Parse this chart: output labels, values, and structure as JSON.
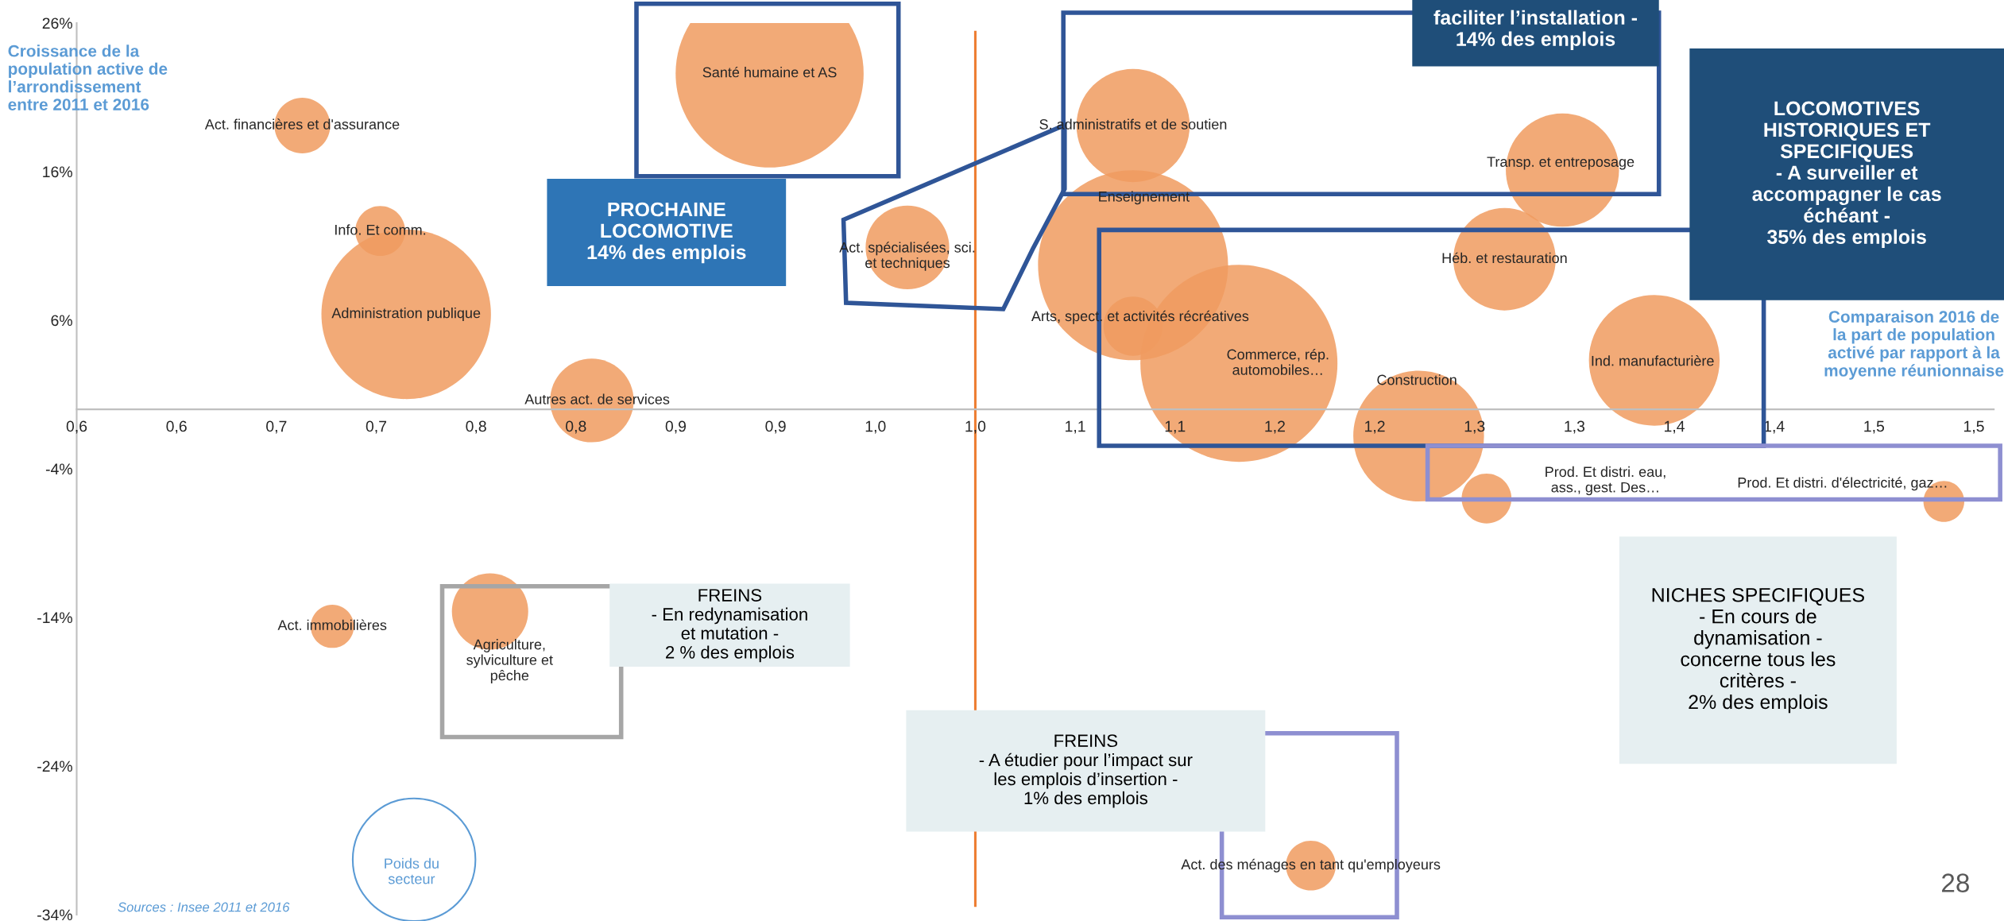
{
  "chart_data": {
    "type": "bubble",
    "ylabel": "Croissance de la\npopulation active de\nl’arrondissement\nentre 2011 et 2016",
    "xlabel": "Comparaison 2016 de\nla part de population\nactivé par rapport à la\nmoyenne réunionnaise",
    "xlim": [
      0.55,
      1.51
    ],
    "xticks": [
      {
        "value": 0.55,
        "label": "0,6"
      },
      {
        "value": 0.6,
        "label": "0,6"
      },
      {
        "value": 0.65,
        "label": "0,7"
      },
      {
        "value": 0.7,
        "label": "0,7"
      },
      {
        "value": 0.75,
        "label": "0,8"
      },
      {
        "value": 0.8,
        "label": "0,8"
      },
      {
        "value": 0.85,
        "label": "0,9"
      },
      {
        "value": 0.9,
        "label": "0,9"
      },
      {
        "value": 0.95,
        "label": "1,0"
      },
      {
        "value": 1.0,
        "label": "1,0"
      },
      {
        "value": 1.05,
        "label": "1,1"
      },
      {
        "value": 1.1,
        "label": "1,1"
      },
      {
        "value": 1.15,
        "label": "1,2"
      },
      {
        "value": 1.2,
        "label": "1,2"
      },
      {
        "value": 1.25,
        "label": "1,3"
      },
      {
        "value": 1.3,
        "label": "1,3"
      },
      {
        "value": 1.35,
        "label": "1,4"
      },
      {
        "value": 1.4,
        "label": "1,4"
      },
      {
        "value": 1.45,
        "label": "1,5"
      },
      {
        "value": 1.5,
        "label": "1,5"
      }
    ],
    "ylim": [
      -34,
      26
    ],
    "yticks": [
      {
        "value": 26,
        "label": "26%"
      },
      {
        "value": 16,
        "label": "16%"
      },
      {
        "value": 6,
        "label": "6%"
      },
      {
        "value": -4,
        "label": "-4%"
      },
      {
        "value": -14,
        "label": "-14%"
      },
      {
        "value": -24,
        "label": "-24%"
      },
      {
        "value": -34,
        "label": "-34%"
      }
    ],
    "grid": false,
    "legend": false,
    "ref_lines": [
      {
        "axis": "x",
        "value": 1.0,
        "color": "#ed7d31"
      }
    ],
    "series": [
      {
        "name": "Act. financières et d'assurance",
        "color": "#f09b5f",
        "x": [
          0.663
        ],
        "values": [
          19.1
        ],
        "sizes": [
          0.08
        ]
      },
      {
        "name": "Santé humaine et AS",
        "color": "#f09b5f",
        "x": [
          0.897
        ],
        "values": [
          22.6
        ],
        "sizes": [
          0.91
        ]
      },
      {
        "name": "Info. Et comm.",
        "color": "#f09b5f",
        "x": [
          0.702
        ],
        "values": [
          12.0
        ],
        "sizes": [
          0.064
        ]
      },
      {
        "name": "Administration publique",
        "color": "#f09b5f",
        "x": [
          0.715
        ],
        "values": [
          6.4
        ],
        "sizes": [
          0.74
        ]
      },
      {
        "name": "Autres act. de services",
        "color": "#f09b5f",
        "x": [
          0.808
        ],
        "values": [
          0.6
        ],
        "sizes": [
          0.18
        ]
      },
      {
        "name": "Act. spécialisées, sci.\net techniques",
        "color": "#f09b5f",
        "x": [
          0.966
        ],
        "values": [
          10.9
        ],
        "sizes": [
          0.18
        ]
      },
      {
        "name": "S. administratifs et de soutien",
        "color": "#f09b5f",
        "x": [
          1.079
        ],
        "values": [
          19.1
        ],
        "sizes": [
          0.33
        ]
      },
      {
        "name": "Enseignement",
        "color": "#f09b5f",
        "x": [
          1.079
        ],
        "values": [
          9.7
        ],
        "sizes": [
          0.93
        ]
      },
      {
        "name": "Arts, spect. et activités récréatives",
        "color": "#f09b5f",
        "x": [
          1.079
        ],
        "values": [
          5.6
        ],
        "sizes": [
          0.09
        ]
      },
      {
        "name": "Commerce, rép.\nautomobiles…",
        "color": "#f09b5f",
        "x": [
          1.132
        ],
        "values": [
          3.1
        ],
        "sizes": [
          1.0
        ]
      },
      {
        "name": "Transp. et entreposage",
        "color": "#f09b5f",
        "x": [
          1.294
        ],
        "values": [
          16.1
        ],
        "sizes": [
          0.33
        ]
      },
      {
        "name": "Héb. et restauration",
        "color": "#f09b5f",
        "x": [
          1.265
        ],
        "values": [
          10.1
        ],
        "sizes": [
          0.27
        ]
      },
      {
        "name": "Construction",
        "color": "#f09b5f",
        "x": [
          1.222
        ],
        "values": [
          -1.8
        ],
        "sizes": [
          0.44
        ]
      },
      {
        "name": "Ind. manufacturière",
        "color": "#f09b5f",
        "x": [
          1.34
        ],
        "values": [
          3.3
        ],
        "sizes": [
          0.44
        ]
      },
      {
        "name": "Prod. Et distri. eau,\nass., gest. Des…",
        "color": "#f09b5f",
        "x": [
          1.256
        ],
        "values": [
          -6.0
        ],
        "sizes": [
          0.064
        ]
      },
      {
        "name": "Prod. Et distri. d'électricité, gaz…",
        "color": "#f09b5f",
        "x": [
          1.485
        ],
        "values": [
          -6.2
        ],
        "sizes": [
          0.043
        ]
      },
      {
        "name": "Act. immobilières",
        "color": "#f09b5f",
        "x": [
          0.678
        ],
        "values": [
          -14.6
        ],
        "sizes": [
          0.048
        ]
      },
      {
        "name": "Agriculture,\nsylviculture et\npêche",
        "color": "#f09b5f",
        "x": [
          0.757
        ],
        "values": [
          -13.6
        ],
        "sizes": [
          0.15
        ]
      },
      {
        "name": "Act. des ménages en tant qu'employeurs",
        "color": "#f09b5f",
        "x": [
          1.168
        ],
        "values": [
          -30.7
        ],
        "sizes": [
          0.064
        ]
      }
    ],
    "annotations": [
      "faciliter l’installation -\n14% des emplois",
      "PROCHAINE\nLOCOMOTIVE\n14% des emplois",
      "LOCOMOTIVES\nHISTORIQUES ET\nSPECIFIQUES\n- A surveiller et\naccompagner le cas\néchéant -\n35% des emplois",
      "FREINS\n- En redynamisation\net mutation -\n2 % des emplois",
      "FREINS\n- A étudier pour l’impact sur\nles emplois d’insertion -\n1% des emplois",
      "NICHES SPECIFIQUES\n- En cours de\ndynamisation -\nconcerne tous les\ncritères -\n2% des emplois",
      "Poids du\nsecteur",
      "Sources : Insee 2011 et 2016",
      "28"
    ]
  }
}
